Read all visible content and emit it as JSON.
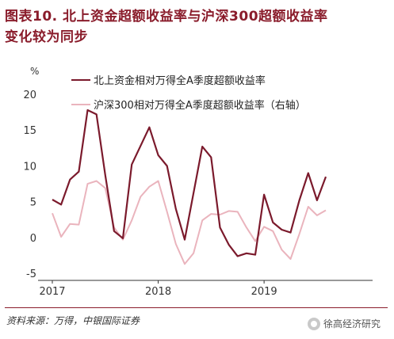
{
  "header": {
    "title_line1": "图表10. 北上资金超额收益率与沪深300超额收益率",
    "title_line2": "变化较为同步"
  },
  "footer": {
    "source": "资料来源：万得，中银国际证券",
    "watermark": "徐高经济研究"
  },
  "colors": {
    "series1": "#7b1a2c",
    "series2": "#eab4bd",
    "title": "#8a1c2b",
    "axis": "#333333"
  },
  "chart_data": {
    "type": "line",
    "title": "",
    "xlabel": "",
    "ylabel": "%",
    "ylim": [
      -5,
      20
    ],
    "yticks": [
      -5,
      0,
      5,
      10,
      15,
      20
    ],
    "x_ticks": [
      "2017",
      "2018",
      "2019"
    ],
    "x": [
      "2017-01",
      "2017-02",
      "2017-03",
      "2017-04",
      "2017-05",
      "2017-06",
      "2017-07",
      "2017-08",
      "2017-09",
      "2017-10",
      "2017-11",
      "2017-12",
      "2018-01",
      "2018-02",
      "2018-03",
      "2018-04",
      "2018-05",
      "2018-06",
      "2018-07",
      "2018-08",
      "2018-09",
      "2018-10",
      "2018-11",
      "2018-12",
      "2019-01",
      "2019-02",
      "2019-03",
      "2019-04",
      "2019-05",
      "2019-06",
      "2019-07",
      "2019-08"
    ],
    "grid": false,
    "legend_position": "top-left",
    "series": [
      {
        "name": "北上资金相对万得全A季度超额收益率",
        "values": [
          5.4,
          4.7,
          8.2,
          9.3,
          17.9,
          17.3,
          8.8,
          1.0,
          0.0,
          10.3,
          12.9,
          15.5,
          11.6,
          10.1,
          4.1,
          -0.2,
          6.3,
          12.8,
          11.3,
          1.5,
          -0.9,
          -2.5,
          -2.1,
          -2.3,
          6.1,
          2.2,
          1.2,
          0.8,
          5.3,
          9.1,
          5.3,
          8.6
        ]
      },
      {
        "name": "沪深300相对万得全A季度超额收益率（右轴）",
        "values": [
          3.5,
          0.2,
          2.0,
          1.9,
          7.6,
          8.0,
          7.0,
          1.5,
          -0.2,
          2.5,
          5.8,
          7.2,
          8.0,
          3.7,
          -0.8,
          -3.6,
          -2.1,
          2.5,
          3.4,
          3.3,
          3.8,
          3.7,
          1.5,
          -0.4,
          1.6,
          1.0,
          -1.6,
          -2.9,
          0.6,
          4.4,
          3.2,
          3.9
        ]
      }
    ]
  }
}
